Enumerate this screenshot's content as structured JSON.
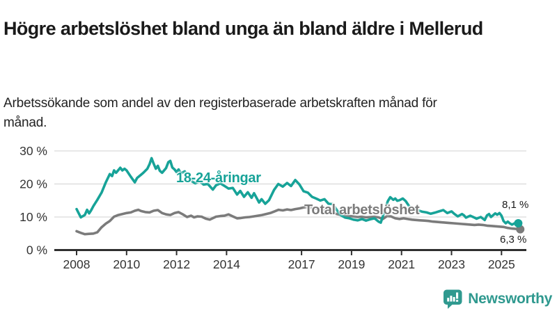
{
  "header": {
    "title": "Högre arbetslöshet bland unga än bland äldre i Mellerud",
    "subtitle": "Arbetssökande som andel av den registerbaserade arbetskraften månad för månad."
  },
  "chart_data": {
    "type": "line",
    "title": "Högre arbetslöshet bland unga än bland äldre i Mellerud",
    "subtitle": "Arbetssökande som andel av den registerbaserade arbetskraften månad för månad.",
    "unit": "%",
    "x_range": [
      2008,
      2025.75
    ],
    "ylim": [
      0,
      30
    ],
    "yticks": [
      0,
      10,
      20,
      30
    ],
    "ytick_format": "{v} %",
    "xticks": [
      2008,
      2010,
      2012,
      2014,
      2017,
      2019,
      2021,
      2023,
      2025
    ],
    "grid": "horizontal",
    "legend_position": "inline-labels",
    "colors": {
      "young": "#17a398",
      "total": "#7b7b7b",
      "gridline": "#d9d9d9",
      "axis": "#2f2f2f",
      "tick_text": "#333333"
    },
    "series": [
      {
        "name": "18-24-åringar",
        "color": "#17a398",
        "end_label": "8,1 %",
        "end_value": 8.1,
        "points": [
          [
            2008.0,
            12.4
          ],
          [
            2008.08,
            11.2
          ],
          [
            2008.17,
            9.9
          ],
          [
            2008.33,
            10.6
          ],
          [
            2008.42,
            12.2
          ],
          [
            2008.5,
            11.1
          ],
          [
            2008.58,
            12.0
          ],
          [
            2008.67,
            13.3
          ],
          [
            2008.83,
            15.2
          ],
          [
            2009.0,
            17.4
          ],
          [
            2009.17,
            20.5
          ],
          [
            2009.33,
            23.0
          ],
          [
            2009.42,
            22.4
          ],
          [
            2009.5,
            24.1
          ],
          [
            2009.58,
            23.4
          ],
          [
            2009.75,
            24.9
          ],
          [
            2009.83,
            24.1
          ],
          [
            2009.92,
            24.6
          ],
          [
            2010.0,
            24.1
          ],
          [
            2010.17,
            22.2
          ],
          [
            2010.33,
            20.5
          ],
          [
            2010.42,
            21.8
          ],
          [
            2010.58,
            22.8
          ],
          [
            2010.67,
            23.4
          ],
          [
            2010.83,
            24.6
          ],
          [
            2010.92,
            26.0
          ],
          [
            2011.0,
            27.8
          ],
          [
            2011.08,
            26.2
          ],
          [
            2011.17,
            24.6
          ],
          [
            2011.25,
            25.5
          ],
          [
            2011.33,
            24.0
          ],
          [
            2011.42,
            23.4
          ],
          [
            2011.58,
            24.8
          ],
          [
            2011.67,
            26.6
          ],
          [
            2011.75,
            27.0
          ],
          [
            2011.83,
            25.0
          ],
          [
            2011.92,
            24.4
          ],
          [
            2012.0,
            23.6
          ],
          [
            2012.08,
            24.4
          ],
          [
            2012.17,
            23.2
          ],
          [
            2012.33,
            23.8
          ],
          [
            2012.42,
            22.6
          ],
          [
            2012.58,
            21.0
          ],
          [
            2012.75,
            20.2
          ],
          [
            2012.92,
            20.8
          ],
          [
            2013.08,
            19.8
          ],
          [
            2013.25,
            20.0
          ],
          [
            2013.45,
            18.3
          ],
          [
            2013.58,
            19.6
          ],
          [
            2013.75,
            20.2
          ],
          [
            2013.92,
            19.4
          ],
          [
            2014.08,
            18.6
          ],
          [
            2014.25,
            18.8
          ],
          [
            2014.42,
            16.8
          ],
          [
            2014.55,
            17.9
          ],
          [
            2014.7,
            16.1
          ],
          [
            2014.85,
            17.5
          ],
          [
            2015.0,
            15.8
          ],
          [
            2015.1,
            17.2
          ],
          [
            2015.3,
            14.4
          ],
          [
            2015.4,
            15.4
          ],
          [
            2015.55,
            14.0
          ],
          [
            2015.7,
            15.1
          ],
          [
            2015.9,
            18.2
          ],
          [
            2016.07,
            20.0
          ],
          [
            2016.25,
            19.2
          ],
          [
            2016.42,
            20.3
          ],
          [
            2016.58,
            19.4
          ],
          [
            2016.75,
            21.2
          ],
          [
            2016.92,
            19.8
          ],
          [
            2017.08,
            17.8
          ],
          [
            2017.25,
            17.4
          ],
          [
            2017.42,
            16.1
          ],
          [
            2017.58,
            15.6
          ],
          [
            2017.75,
            15.0
          ],
          [
            2017.92,
            15.4
          ],
          [
            2018.08,
            14.0
          ],
          [
            2018.25,
            13.9
          ],
          [
            2018.42,
            12.0
          ],
          [
            2018.58,
            10.5
          ],
          [
            2018.75,
            9.8
          ],
          [
            2018.92,
            9.6
          ],
          [
            2019.08,
            9.2
          ],
          [
            2019.25,
            9.0
          ],
          [
            2019.42,
            9.4
          ],
          [
            2019.58,
            8.9
          ],
          [
            2019.75,
            9.3
          ],
          [
            2019.92,
            9.6
          ],
          [
            2020.08,
            8.6
          ],
          [
            2020.17,
            8.3
          ],
          [
            2020.33,
            12.0
          ],
          [
            2020.45,
            14.8
          ],
          [
            2020.55,
            16.0
          ],
          [
            2020.67,
            15.2
          ],
          [
            2020.75,
            15.6
          ],
          [
            2020.83,
            14.9
          ],
          [
            2020.92,
            15.1
          ],
          [
            2021.05,
            15.6
          ],
          [
            2021.17,
            14.8
          ],
          [
            2021.33,
            13.0
          ],
          [
            2021.5,
            12.4
          ],
          [
            2021.67,
            12.0
          ],
          [
            2021.83,
            11.6
          ],
          [
            2022.0,
            11.4
          ],
          [
            2022.17,
            11.0
          ],
          [
            2022.33,
            11.3
          ],
          [
            2022.5,
            11.7
          ],
          [
            2022.67,
            12.1
          ],
          [
            2022.83,
            11.2
          ],
          [
            2023.0,
            11.7
          ],
          [
            2023.12,
            10.9
          ],
          [
            2023.25,
            10.2
          ],
          [
            2023.42,
            10.9
          ],
          [
            2023.5,
            10.5
          ],
          [
            2023.58,
            9.8
          ],
          [
            2023.75,
            10.4
          ],
          [
            2023.92,
            9.8
          ],
          [
            2024.0,
            9.5
          ],
          [
            2024.17,
            10.0
          ],
          [
            2024.33,
            9.1
          ],
          [
            2024.42,
            10.5
          ],
          [
            2024.5,
            10.9
          ],
          [
            2024.58,
            10.0
          ],
          [
            2024.75,
            11.1
          ],
          [
            2024.83,
            10.7
          ],
          [
            2024.92,
            11.2
          ],
          [
            2025.0,
            10.4
          ],
          [
            2025.08,
            8.8
          ],
          [
            2025.17,
            8.1
          ],
          [
            2025.25,
            8.6
          ],
          [
            2025.33,
            8.1
          ],
          [
            2025.42,
            7.7
          ],
          [
            2025.5,
            8.0
          ],
          [
            2025.58,
            8.3
          ],
          [
            2025.67,
            8.1
          ]
        ]
      },
      {
        "name": "Total arbetslöshet",
        "color": "#7b7b7b",
        "end_label": "6,3 %",
        "end_value": 6.3,
        "points": [
          [
            2008.0,
            5.7
          ],
          [
            2008.17,
            5.2
          ],
          [
            2008.33,
            4.8
          ],
          [
            2008.5,
            4.9
          ],
          [
            2008.67,
            5.0
          ],
          [
            2008.83,
            5.4
          ],
          [
            2009.0,
            6.9
          ],
          [
            2009.17,
            8.0
          ],
          [
            2009.33,
            8.8
          ],
          [
            2009.5,
            10.1
          ],
          [
            2009.67,
            10.6
          ],
          [
            2009.83,
            10.9
          ],
          [
            2010.0,
            11.2
          ],
          [
            2010.17,
            11.4
          ],
          [
            2010.33,
            11.9
          ],
          [
            2010.47,
            12.2
          ],
          [
            2010.58,
            11.8
          ],
          [
            2010.75,
            11.5
          ],
          [
            2010.92,
            11.4
          ],
          [
            2011.08,
            11.9
          ],
          [
            2011.25,
            12.1
          ],
          [
            2011.42,
            11.2
          ],
          [
            2011.58,
            10.8
          ],
          [
            2011.75,
            10.6
          ],
          [
            2011.92,
            11.2
          ],
          [
            2012.08,
            11.5
          ],
          [
            2012.25,
            10.8
          ],
          [
            2012.42,
            10.0
          ],
          [
            2012.58,
            10.4
          ],
          [
            2012.7,
            9.9
          ],
          [
            2012.83,
            10.2
          ],
          [
            2013.0,
            10.1
          ],
          [
            2013.17,
            9.5
          ],
          [
            2013.33,
            9.2
          ],
          [
            2013.58,
            10.1
          ],
          [
            2013.75,
            10.3
          ],
          [
            2013.92,
            10.4
          ],
          [
            2014.08,
            10.8
          ],
          [
            2014.25,
            10.2
          ],
          [
            2014.42,
            9.6
          ],
          [
            2014.58,
            9.7
          ],
          [
            2014.75,
            9.9
          ],
          [
            2014.92,
            10.0
          ],
          [
            2015.08,
            10.2
          ],
          [
            2015.25,
            10.4
          ],
          [
            2015.42,
            10.6
          ],
          [
            2015.58,
            10.9
          ],
          [
            2015.75,
            11.2
          ],
          [
            2015.92,
            11.7
          ],
          [
            2016.08,
            12.2
          ],
          [
            2016.25,
            12.0
          ],
          [
            2016.42,
            12.3
          ],
          [
            2016.58,
            12.1
          ],
          [
            2016.75,
            12.4
          ],
          [
            2016.92,
            12.6
          ],
          [
            2017.08,
            12.9
          ],
          [
            2017.25,
            13.0
          ],
          [
            2017.42,
            12.8
          ],
          [
            2017.58,
            12.5
          ],
          [
            2017.75,
            12.2
          ],
          [
            2017.92,
            12.0
          ],
          [
            2018.08,
            11.6
          ],
          [
            2018.25,
            11.2
          ],
          [
            2018.42,
            10.9
          ],
          [
            2018.58,
            10.6
          ],
          [
            2018.75,
            10.4
          ],
          [
            2018.92,
            10.3
          ],
          [
            2019.08,
            10.2
          ],
          [
            2019.25,
            10.0
          ],
          [
            2019.42,
            10.1
          ],
          [
            2019.58,
            9.9
          ],
          [
            2019.75,
            10.0
          ],
          [
            2019.92,
            10.1
          ],
          [
            2020.08,
            9.9
          ],
          [
            2020.25,
            9.4
          ],
          [
            2020.42,
            10.3
          ],
          [
            2020.58,
            10.2
          ],
          [
            2020.75,
            9.6
          ],
          [
            2020.92,
            9.4
          ],
          [
            2021.08,
            9.6
          ],
          [
            2021.25,
            9.4
          ],
          [
            2021.42,
            9.2
          ],
          [
            2021.58,
            9.1
          ],
          [
            2021.75,
            9.0
          ],
          [
            2021.92,
            8.9
          ],
          [
            2022.08,
            8.8
          ],
          [
            2022.25,
            8.6
          ],
          [
            2022.42,
            8.5
          ],
          [
            2022.58,
            8.4
          ],
          [
            2022.75,
            8.3
          ],
          [
            2022.92,
            8.2
          ],
          [
            2023.08,
            8.1
          ],
          [
            2023.25,
            8.0
          ],
          [
            2023.42,
            7.9
          ],
          [
            2023.58,
            7.8
          ],
          [
            2023.75,
            7.7
          ],
          [
            2023.92,
            7.6
          ],
          [
            2024.08,
            7.7
          ],
          [
            2024.25,
            7.6
          ],
          [
            2024.42,
            7.4
          ],
          [
            2024.58,
            7.3
          ],
          [
            2024.75,
            7.2
          ],
          [
            2024.92,
            7.1
          ],
          [
            2025.08,
            7.0
          ],
          [
            2025.25,
            6.7
          ],
          [
            2025.42,
            6.5
          ],
          [
            2025.58,
            6.4
          ],
          [
            2025.75,
            6.3
          ]
        ]
      }
    ]
  },
  "branding": {
    "logo_text": "Newsworthy",
    "logo_color": "#2f998f",
    "logo_icon": "bar-chart-speech-bubble"
  }
}
